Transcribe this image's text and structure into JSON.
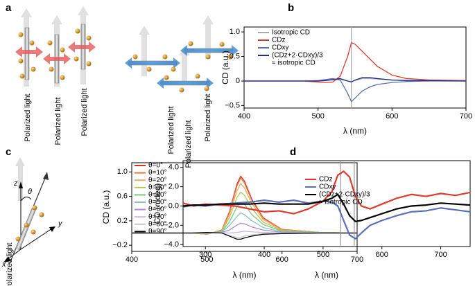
{
  "panel_a": {
    "letter": "a",
    "labels": [
      "Polarized light",
      "Polarized light",
      "Polarized light",
      "Polarized light",
      "Polarized light",
      "Polarized light"
    ]
  },
  "panel_c_diagram": {
    "letter": "c",
    "axis_z": "z",
    "axis_y": "y",
    "axis_x": "x",
    "angle": "θ",
    "label": "Polarized light"
  },
  "chart_data": [
    {
      "type": "line",
      "panel_label": "b",
      "xlabel": "λ (nm)",
      "ylabel": "CD (a.u.)",
      "xlim": [
        400,
        700
      ],
      "xticks": [
        400,
        500,
        600,
        700
      ],
      "ylim": [
        -0.55,
        1.1
      ],
      "yticks": [
        {
          "value": -0.5,
          "label": "−0.5"
        },
        0,
        0.5,
        {
          "value": 1.0,
          "label": "1.0"
        }
      ],
      "vlines": [
        545
      ],
      "vline_color": "#aaaaaa",
      "x": [
        400,
        450,
        480,
        500,
        510,
        520,
        530,
        540,
        545,
        550,
        560,
        570,
        580,
        600,
        620,
        650,
        700
      ],
      "series": [
        {
          "name": "Isotropic CD",
          "color": "#aaaaaa",
          "values": [
            0,
            0,
            0,
            0,
            0.01,
            0.02,
            0.03,
            0,
            -0.01,
            0.01,
            0.05,
            0.05,
            0.04,
            0.02,
            0.01,
            0,
            0
          ]
        },
        {
          "name": "CDz",
          "color": "#e03a2f",
          "values": [
            0,
            0,
            0,
            -0.02,
            -0.03,
            -0.02,
            0.1,
            0.5,
            0.78,
            0.75,
            0.6,
            0.45,
            0.3,
            0.12,
            0.05,
            0.02,
            0.01
          ]
        },
        {
          "name": "CDxy",
          "color": "#5b6fb8",
          "values": [
            0,
            0,
            0,
            0.01,
            0.03,
            0.05,
            0.02,
            -0.25,
            -0.42,
            -0.35,
            -0.2,
            -0.12,
            -0.07,
            -0.03,
            -0.01,
            0,
            0
          ]
        },
        {
          "name": "(CDz+2·CDxy)/3",
          "legend_note": "≈ isotropic CD",
          "color": "#1f2f8a",
          "values": [
            0,
            0,
            0,
            0,
            0.01,
            0.03,
            0.05,
            0,
            -0.02,
            0.02,
            0.07,
            0.07,
            0.05,
            0.02,
            0.01,
            0.01,
            0
          ]
        }
      ]
    },
    {
      "type": "line",
      "xlabel": "λ (nm)",
      "ylabel": "CD (a.u.)",
      "xlim": [
        400,
        700
      ],
      "xticks": [
        400,
        500,
        600,
        700
      ],
      "ylim": [
        -0.3,
        1.15
      ],
      "yticks": [
        {
          "value": -0.2,
          "label": "−0.2"
        },
        0.2,
        0.6,
        {
          "value": 1.0,
          "label": "1.0"
        }
      ],
      "x": [
        400,
        480,
        500,
        520,
        530,
        540,
        545,
        550,
        560,
        575,
        600,
        650,
        700
      ],
      "series": [
        {
          "name": "θ=0°",
          "color": "#d7301f",
          "values": [
            0,
            0,
            -0.02,
            0.05,
            0.35,
            0.8,
            0.93,
            0.85,
            0.55,
            0.25,
            0.06,
            0.01,
            0
          ]
        },
        {
          "name": "θ=10°",
          "color": "#e8743b",
          "values": [
            0,
            0,
            -0.02,
            0.05,
            0.34,
            0.77,
            0.9,
            0.82,
            0.53,
            0.24,
            0.06,
            0.01,
            0
          ]
        },
        {
          "name": "θ=20°",
          "color": "#f0a860",
          "values": [
            0,
            0,
            -0.02,
            0.04,
            0.3,
            0.69,
            0.81,
            0.74,
            0.48,
            0.22,
            0.05,
            0.01,
            0
          ]
        },
        {
          "name": "θ=30°",
          "color": "#b9c45a",
          "values": [
            0,
            0,
            -0.01,
            0.04,
            0.25,
            0.58,
            0.67,
            0.62,
            0.4,
            0.18,
            0.04,
            0.01,
            0
          ]
        },
        {
          "name": "θ=40°",
          "color": "#7fc47f",
          "values": [
            0,
            0,
            -0.01,
            0.03,
            0.18,
            0.43,
            0.5,
            0.47,
            0.3,
            0.14,
            0.03,
            0.01,
            0
          ]
        },
        {
          "name": "θ=50°",
          "color": "#86c3b8",
          "values": [
            0,
            0,
            0,
            0.02,
            0.12,
            0.27,
            0.33,
            0.3,
            0.2,
            0.09,
            0.02,
            0,
            0
          ]
        },
        {
          "name": "θ=60°",
          "color": "#a98bd1",
          "values": [
            0,
            0,
            0,
            0.01,
            0.05,
            0.13,
            0.16,
            0.15,
            0.1,
            0.05,
            0.01,
            0,
            0
          ]
        },
        {
          "name": "θ=70°",
          "color": "#cbb5e3",
          "values": [
            0,
            0,
            0.01,
            0.01,
            0,
            0.01,
            0.02,
            0.03,
            0.02,
            0.01,
            0,
            0,
            0
          ]
        },
        {
          "name": "θ=80°",
          "color": "#c8c8c8",
          "values": [
            0,
            0,
            0.01,
            0,
            -0.04,
            -0.07,
            -0.07,
            -0.05,
            -0.03,
            -0.01,
            -0.01,
            0,
            0
          ]
        },
        {
          "name": "θ=90°",
          "color": "#000000",
          "values": [
            0,
            0,
            0.01,
            0,
            -0.05,
            -0.1,
            -0.1,
            -0.08,
            -0.05,
            -0.02,
            -0.01,
            0,
            0
          ]
        }
      ]
    },
    {
      "type": "line",
      "panel_label": "d",
      "xlabel": "λ (nm)",
      "ylabel": "CD (mdeg)",
      "xlim": [
        262,
        750
      ],
      "xticks": [
        300,
        400,
        500,
        600,
        700
      ],
      "ylim": [
        -4.2,
        4.7
      ],
      "yticks": [
        {
          "value": -4,
          "label": "−4.0"
        },
        {
          "value": -2,
          "label": "−2.0"
        },
        {
          "value": 0,
          "label": "0.0"
        },
        {
          "value": 2,
          "label": "2.0"
        },
        {
          "value": 4,
          "label": "4.0"
        }
      ],
      "vlines": [
        530,
        553
      ],
      "vline_color": "#999999",
      "x": [
        262,
        280,
        300,
        325,
        350,
        375,
        400,
        425,
        450,
        475,
        500,
        515,
        525,
        535,
        545,
        555,
        565,
        580,
        600,
        625,
        650,
        675,
        700,
        725,
        750
      ],
      "series": [
        {
          "name": "CDz",
          "color": "#e03a2f",
          "values": [
            0.3,
            0,
            0.2,
            0.1,
            0,
            -0.3,
            -0.6,
            -0.5,
            -0.8,
            -0.3,
            0.5,
            1.5,
            3.2,
            3.6,
            3.0,
            1.0,
            0,
            -0.3,
            0.2,
            0.8,
            1.2,
            1.0,
            1.3,
            1.1,
            1.4
          ]
        },
        {
          "name": "CDxy",
          "color": "#5b6fb8",
          "values": [
            -0.1,
            0.1,
            0,
            0.2,
            0.3,
            0.4,
            0.6,
            0.4,
            0.6,
            0.3,
            0.5,
            0.4,
            0,
            -1.5,
            -3.0,
            -3.4,
            -2.8,
            -2.0,
            -1.5,
            -1.0,
            -0.6,
            -0.5,
            -0.2,
            -0.4,
            -0.6
          ]
        },
        {
          "name": "(CDz+2·CDxy)/3",
          "legend_note": "≈ isotropic CD",
          "color": "#000000",
          "values": [
            0,
            0.1,
            0.1,
            0.2,
            0.2,
            0.2,
            0.3,
            0.2,
            0.2,
            0.2,
            0.5,
            0.8,
            1.2,
            0.2,
            -1.0,
            -1.6,
            -1.5,
            -1.2,
            -0.8,
            -0.3,
            0,
            0.1,
            0.3,
            0.2,
            0.1
          ]
        }
      ]
    }
  ]
}
